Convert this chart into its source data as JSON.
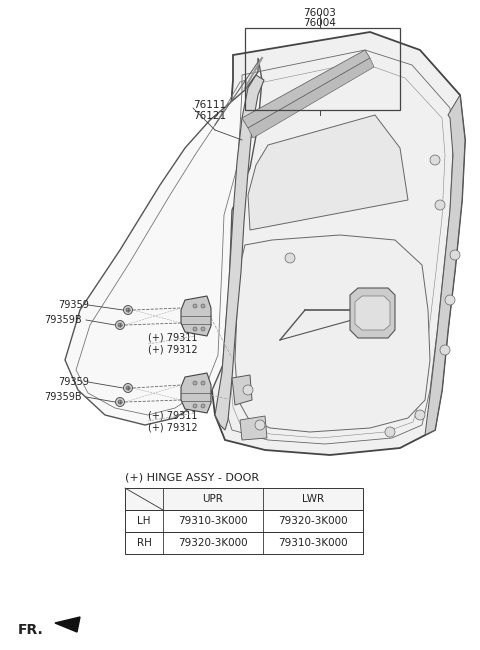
{
  "bg_color": "#ffffff",
  "text_color": "#222222",
  "line_color": "#444444",
  "light_gray": "#cccccc",
  "mid_gray": "#888888",
  "label_76003": "76003",
  "label_76004": "76004",
  "label_76111": "76111",
  "label_76121": "76121",
  "label_79359": "79359",
  "label_79359B": "79359B",
  "label_79311": "(+) 79311",
  "label_79312": "(+) 79312",
  "table_title": "(+) HINGE ASSY - DOOR",
  "table_headers": [
    "",
    "UPR",
    "LWR"
  ],
  "table_rows": [
    [
      "LH",
      "79310-3K000",
      "79320-3K000"
    ],
    [
      "RH",
      "79320-3K000",
      "79310-3K000"
    ]
  ],
  "fr_label": "FR.",
  "font_size_main": 7.5,
  "font_size_label": 7.0,
  "font_size_fr": 10
}
